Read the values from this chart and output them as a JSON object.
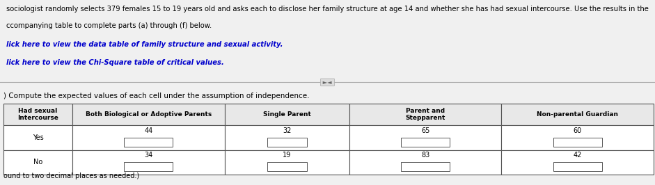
{
  "title_text": "sociologist randomly selects 379 females 15 to 19 years old and asks each to disclose her family structure at age 14 and whether she has had sexual intercourse. Use the results in the",
  "title_line2": "ccompanying table to complete parts (a) through (f) below.",
  "link1": "lick here to view the data table of family structure and sexual activity.",
  "link2": "lick here to view the Chi-Square table of critical values.",
  "instruction": ") Compute the expected values of each cell under the assumption of independence.",
  "col_headers": [
    "Had sexual\nIntercourse",
    "Both Biological or Adoptive Parents",
    "Single Parent",
    "Parent and\nStepparent",
    "Non-parental Guardian"
  ],
  "row_labels": [
    "Yes",
    "No"
  ],
  "observed_yes": [
    44,
    32,
    65,
    60
  ],
  "observed_no": [
    34,
    19,
    83,
    42
  ],
  "bg_color": "#f0f0f0",
  "header_bg": "#e8e8e8",
  "cell_bg": "#ffffff",
  "text_color": "#000000",
  "link_color": "#0000cc",
  "table_border": "#555555",
  "footnote": "ound to two decimal places as needed.)",
  "sep_icon": "►◄"
}
